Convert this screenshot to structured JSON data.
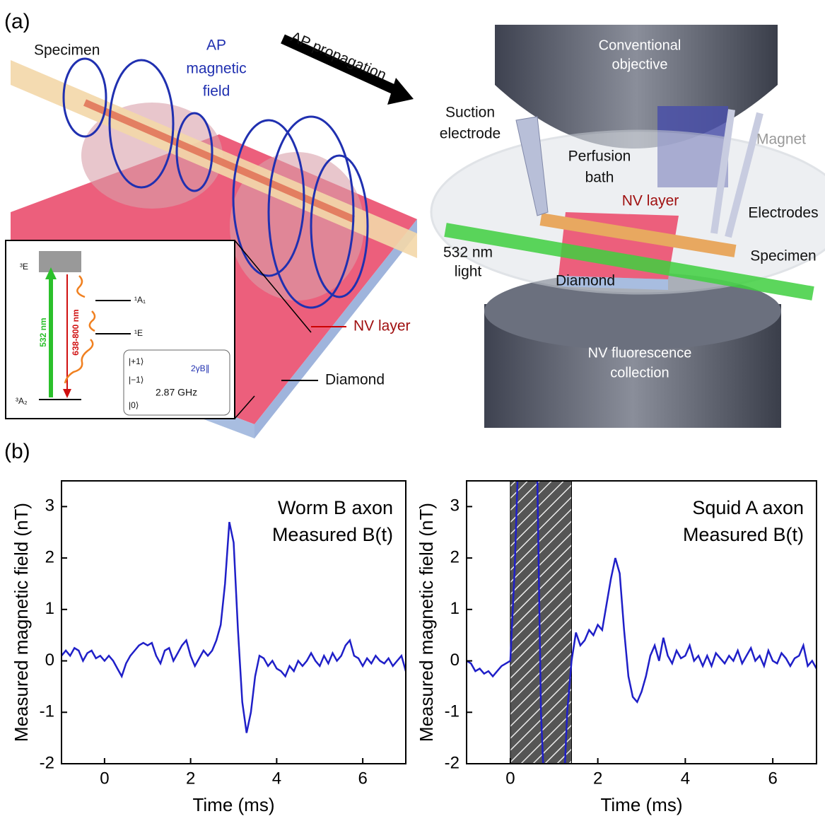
{
  "panel_labels": [
    "(a)",
    "(b)"
  ],
  "left_diagram": {
    "specimen": "Specimen",
    "ap_field": [
      "AP",
      "magnetic",
      "field"
    ],
    "ap_propagation": "AP propagation",
    "nv_layer": "NV layer",
    "diamond": "Diamond",
    "inset": {
      "level_3e": "³E",
      "green": "532 nm",
      "red": "638-800 nm",
      "level_1a1": "¹A₁",
      "level_1e": "¹E",
      "level_3a2": "³A₂",
      "plus": "|+1⟩",
      "minus": "|−1⟩",
      "zero": "|0⟩",
      "zeeman": "2γB∥",
      "zfs": "2.87 GHz"
    }
  },
  "right_diagram": {
    "objective": [
      "Conventional",
      "objective"
    ],
    "suction": [
      "Suction",
      "electrode"
    ],
    "magnet": "Magnet",
    "perfusion": [
      "Perfusion",
      "bath"
    ],
    "nv_layer": "NV layer",
    "electrodes": "Electrodes",
    "light": [
      "532 nm",
      "light"
    ],
    "specimen": "Specimen",
    "diamond": "Diamond",
    "collection": [
      "NV fluorescence",
      "collection"
    ]
  },
  "chart_data": [
    {
      "type": "line",
      "annotation": [
        "Worm B axon",
        "Measured B(t)"
      ],
      "xlabel": "Time (ms)",
      "ylabel": "Measured magnetic field (nT)",
      "xlim": [
        -1,
        7
      ],
      "xticks": [
        0,
        2,
        4,
        6
      ],
      "ylim": [
        -2,
        3.5
      ],
      "yticks": [
        -2,
        -1,
        0,
        1,
        2,
        3
      ],
      "x": [
        -1,
        -0.9,
        -0.8,
        -0.7,
        -0.6,
        -0.5,
        -0.4,
        -0.3,
        -0.2,
        -0.1,
        0,
        0.1,
        0.2,
        0.3,
        0.4,
        0.5,
        0.6,
        0.7,
        0.8,
        0.9,
        1,
        1.1,
        1.2,
        1.3,
        1.4,
        1.5,
        1.6,
        1.7,
        1.8,
        1.9,
        2,
        2.1,
        2.2,
        2.3,
        2.4,
        2.5,
        2.6,
        2.7,
        2.8,
        2.9,
        3,
        3.1,
        3.2,
        3.3,
        3.4,
        3.5,
        3.6,
        3.7,
        3.8,
        3.9,
        4,
        4.1,
        4.2,
        4.3,
        4.4,
        4.5,
        4.6,
        4.7,
        4.8,
        4.9,
        5,
        5.1,
        5.2,
        5.3,
        5.4,
        5.5,
        5.6,
        5.7,
        5.8,
        5.9,
        6,
        6.1,
        6.2,
        6.3,
        6.4,
        6.5,
        6.6,
        6.7,
        6.8,
        6.9,
        7
      ],
      "series": [
        {
          "color": "#1f1fc8",
          "values": [
            0.1,
            0.2,
            0.1,
            0.25,
            0.2,
            0.0,
            0.15,
            0.2,
            0.05,
            0.1,
            0.0,
            0.1,
            0.0,
            -0.15,
            -0.3,
            -0.05,
            0.1,
            0.2,
            0.3,
            0.35,
            0.3,
            0.35,
            0.1,
            -0.05,
            0.2,
            0.25,
            0.0,
            0.15,
            0.3,
            0.4,
            0.1,
            -0.1,
            0.05,
            0.2,
            0.1,
            0.2,
            0.4,
            0.7,
            1.5,
            2.7,
            2.3,
            0.6,
            -0.8,
            -1.4,
            -1.0,
            -0.3,
            0.1,
            0.05,
            -0.1,
            0.0,
            -0.15,
            -0.2,
            -0.3,
            -0.1,
            -0.2,
            0.0,
            -0.1,
            0.0,
            0.15,
            0.0,
            -0.1,
            0.1,
            -0.05,
            0.15,
            0.0,
            0.1,
            0.3,
            0.4,
            0.1,
            0.05,
            -0.1,
            0.05,
            -0.05,
            0.1,
            0.0,
            -0.05,
            0.05,
            -0.1,
            0.0,
            0.1,
            -0.2
          ]
        }
      ]
    },
    {
      "type": "line",
      "annotation": [
        "Squid A axon",
        "Measured B(t)"
      ],
      "xlabel": "Time (ms)",
      "ylabel": "Measured magnetic field (nT)",
      "xlim": [
        -1,
        7
      ],
      "xticks": [
        0,
        2,
        4,
        6
      ],
      "ylim": [
        -2,
        3.5
      ],
      "yticks": [
        -2,
        -1,
        0,
        1,
        2,
        3
      ],
      "shaded_span": [
        0,
        1.4
      ],
      "x": [
        -1,
        -0.9,
        -0.8,
        -0.7,
        -0.6,
        -0.5,
        -0.4,
        -0.3,
        -0.2,
        -0.1,
        0,
        0.1,
        0.2,
        0.3,
        0.4,
        0.5,
        0.6,
        0.7,
        0.8,
        0.9,
        1,
        1.1,
        1.2,
        1.3,
        1.4,
        1.5,
        1.6,
        1.7,
        1.8,
        1.9,
        2,
        2.1,
        2.2,
        2.3,
        2.4,
        2.5,
        2.6,
        2.7,
        2.8,
        2.9,
        3,
        3.1,
        3.2,
        3.3,
        3.4,
        3.5,
        3.6,
        3.7,
        3.8,
        3.9,
        4,
        4.1,
        4.2,
        4.3,
        4.4,
        4.5,
        4.6,
        4.7,
        4.8,
        4.9,
        5,
        5.1,
        5.2,
        5.3,
        5.4,
        5.5,
        5.6,
        5.7,
        5.8,
        5.9,
        6,
        6.1,
        6.2,
        6.3,
        6.4,
        6.5,
        6.6,
        6.7,
        6.8,
        6.9,
        7
      ],
      "series": [
        {
          "color": "#1f1fc8",
          "values": [
            0.0,
            -0.05,
            -0.2,
            -0.15,
            -0.25,
            -0.2,
            -0.3,
            -0.2,
            -0.1,
            -0.05,
            0.0,
            1.8,
            4.5,
            null,
            null,
            null,
            4.5,
            -1.0,
            -3,
            null,
            null,
            null,
            -3,
            -1.0,
            0.0,
            0.55,
            0.3,
            0.4,
            0.6,
            0.5,
            0.7,
            0.6,
            1.1,
            1.6,
            2.0,
            1.7,
            0.6,
            -0.3,
            -0.7,
            -0.8,
            -0.6,
            -0.3,
            0.1,
            0.3,
            0.0,
            0.45,
            0.1,
            -0.05,
            0.2,
            0.05,
            0.1,
            0.3,
            0.0,
            0.1,
            -0.1,
            0.1,
            -0.1,
            0.15,
            0.05,
            -0.05,
            0.1,
            0.0,
            0.2,
            -0.05,
            0.1,
            0.25,
            0.0,
            0.1,
            -0.1,
            0.2,
            0.0,
            -0.05,
            0.15,
            0.05,
            -0.1,
            0.05,
            0.1,
            0.3,
            -0.1,
            0.0,
            -0.15
          ]
        }
      ]
    }
  ]
}
